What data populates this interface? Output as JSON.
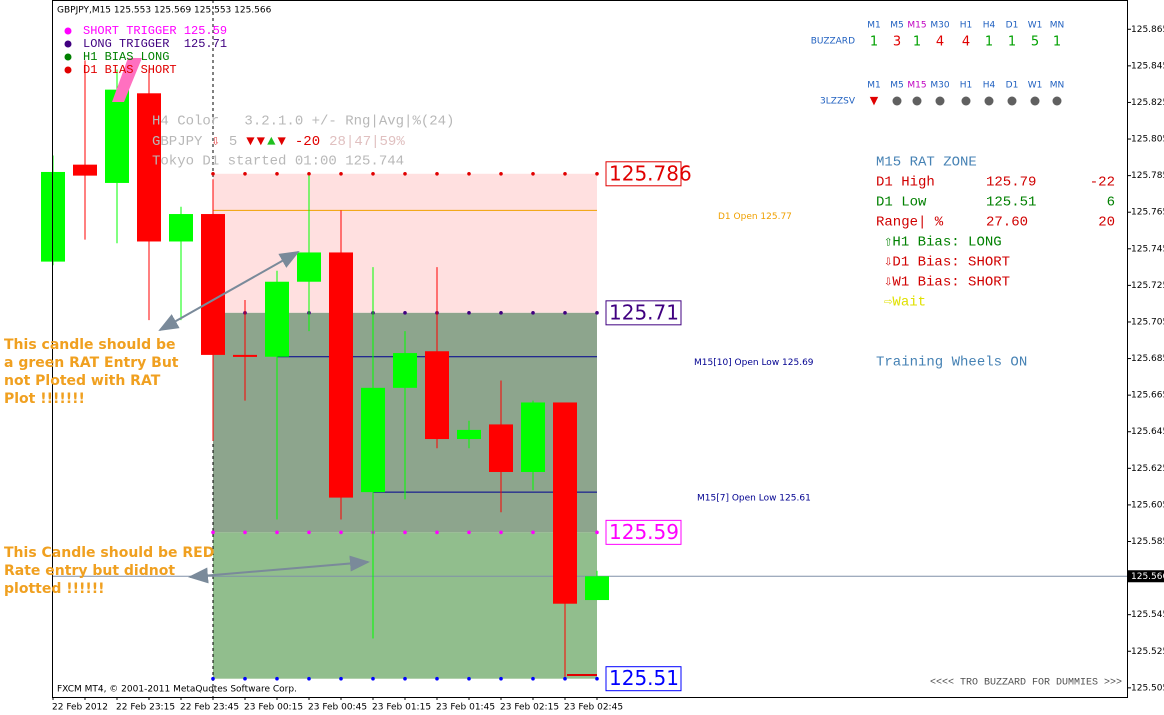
{
  "header": "GBPJPY,M15  125.553 125.569 125.553 125.566",
  "chart_data": {
    "type": "candlestick",
    "categories": [
      "22 Feb 2012",
      null,
      "22 Feb 23:15",
      null,
      "22 Feb 23:45",
      null,
      "23 Feb 00:15",
      null,
      "23 Feb 00:45",
      null,
      "23 Feb 01:15",
      null,
      "23 Feb 01:45",
      null,
      "23 Feb 02:15",
      null,
      "23 Feb 02:45",
      null
    ],
    "open": [
      125.738,
      125.791,
      125.781,
      125.83,
      125.749,
      125.764,
      125.687,
      125.686,
      125.727,
      125.743,
      125.612,
      125.669,
      125.689,
      125.641,
      125.649,
      125.623,
      125.661,
      125.553
    ],
    "high": [
      125.796,
      125.848,
      125.843,
      125.843,
      125.768,
      125.783,
      125.717,
      125.733,
      125.785,
      125.766,
      125.735,
      125.7,
      125.735,
      125.651,
      125.673,
      125.662,
      125.661,
      125.569
    ],
    "low": [
      125.736,
      125.75,
      125.748,
      125.706,
      125.706,
      125.64,
      125.662,
      125.597,
      125.7,
      125.597,
      125.532,
      125.608,
      125.636,
      125.636,
      125.601,
      125.613,
      125.511,
      125.553
    ],
    "close": [
      125.787,
      125.785,
      125.832,
      125.749,
      125.764,
      125.687,
      125.686,
      125.727,
      125.743,
      125.609,
      125.669,
      125.688,
      125.641,
      125.646,
      125.623,
      125.661,
      125.551,
      125.566
    ],
    "up_color": "#00ff00",
    "down_color": "#ff0000",
    "ylim": [
      125.5,
      125.881
    ],
    "yticks": [
      125.865,
      125.845,
      125.825,
      125.805,
      125.785,
      125.765,
      125.745,
      125.725,
      125.705,
      125.685,
      125.665,
      125.645,
      125.625,
      125.605,
      125.585,
      125.545,
      125.525,
      125.505
    ],
    "current_price": 125.566,
    "levels": [
      {
        "value": 125.786,
        "color": "#e00000"
      },
      {
        "value": 125.71,
        "color": "#400080"
      },
      {
        "value": 125.59,
        "color": "#ff00ff"
      },
      {
        "value": 125.51,
        "color": "#0000ff"
      }
    ],
    "zone_fills": [
      "#ffe0e0",
      "#8da58d",
      "#91be8d"
    ],
    "lines": [
      {
        "label": "D1 Open 125.77",
        "value": 125.766,
        "color": "#f0a000"
      },
      {
        "label": "M15[10] Open Low 125.69",
        "value": 125.686,
        "color": "#000090"
      },
      {
        "label": "M15[7] Open Low 125.61",
        "value": 125.612,
        "color": "#000090"
      }
    ]
  },
  "legend": [
    {
      "text": "SHORT TRIGGER 125.59",
      "color": "#ff00ff"
    },
    {
      "text": "LONG TRIGGER  125.71",
      "color": "#400080"
    },
    {
      "text": "H1 BIAS LONG",
      "color": "#008000"
    },
    {
      "text": "D1 BIAS SHORT",
      "color": "#e00000"
    }
  ],
  "overlay": {
    "line1": "H4 Color   3.2.1.0 +/- Rng|Avg|%(24)",
    "line2": [
      {
        "text": "GBPJPY",
        "color": "#b8b8b8"
      },
      {
        "text": "⇩",
        "color": "#e03030"
      },
      {
        "text": "5",
        "color": "#b8b8b8"
      },
      {
        "text": "▼",
        "color": "#e00000"
      },
      {
        "text": "▼",
        "color": "#e00000"
      },
      {
        "text": "▲",
        "color": "#20c020"
      },
      {
        "text": "▼",
        "color": "#e00000"
      },
      {
        "text": "-20",
        "color": "#e00000"
      },
      {
        "text": "28|47|59%",
        "color": "#e0c0c0"
      }
    ],
    "line3": "Tokyo D1 started 01:00 125.744"
  },
  "buzzard": {
    "timeframes": [
      "M1",
      "M5",
      "M15",
      "M30",
      "H1",
      "H4",
      "D1",
      "W1",
      "MN"
    ],
    "row1_label": "BUZZARD",
    "values": [
      "1",
      "3",
      "1",
      "4",
      "4",
      "1",
      "1",
      "5",
      "1"
    ],
    "colors": [
      "#00a000",
      "#e00000",
      "#00a000",
      "#e00000",
      "#e00000",
      "#00a000",
      "#00a000",
      "#00a000",
      "#00a000"
    ],
    "row2_label": "3LZZSV"
  },
  "rat_zone": {
    "title": "M15 RAT ZONE",
    "rows": [
      {
        "cells": [
          "D1 High",
          "125.79",
          "-22"
        ],
        "color": "#d00000"
      },
      {
        "cells": [
          "D1 Low",
          "125.51",
          "6"
        ],
        "color": "#008000"
      },
      {
        "cells": [
          "Range| %",
          "27.60",
          "20"
        ],
        "color": "#d00000"
      }
    ],
    "bias": [
      {
        "text": "⇧H1 Bias: LONG",
        "color": "#008000"
      },
      {
        "text": "⇩D1 Bias: SHORT",
        "color": "#d00000"
      },
      {
        "text": "⇩W1 Bias: SHORT",
        "color": "#d00000"
      },
      {
        "text": "⇨Wait",
        "color": "#e0e000"
      }
    ],
    "status": "Training Wheels ON"
  },
  "annotations": [
    {
      "lines": [
        "This candle should be",
        "a green RAT Entry  But",
        "not Ploted with RAT",
        "Plot !!!!!!!"
      ]
    },
    {
      "lines": [
        "This Candle should be RED",
        "Rate entry but didnot",
        "plotted !!!!!!"
      ]
    }
  ],
  "footer": {
    "left": "FXCM MT4, © 2001-2011 MetaQuotes Software Corp.",
    "right": "<<<< TRO BUZZARD FOR DUMMIES >>>"
  }
}
